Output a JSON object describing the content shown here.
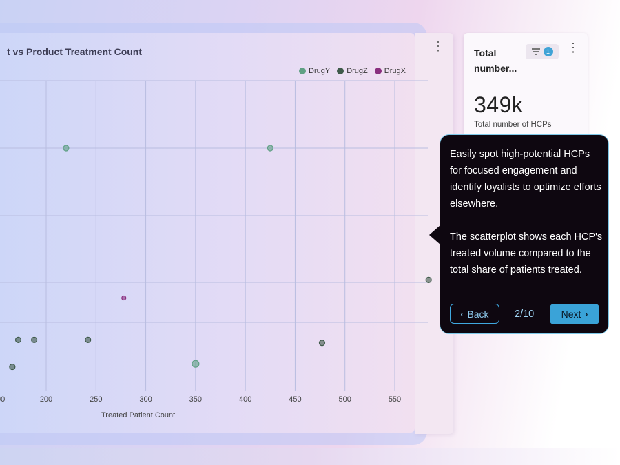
{
  "chart": {
    "title": "t vs Product Treatment Count",
    "menu_icon": "vertical-dots-icon"
  },
  "chart_data": {
    "type": "scatter",
    "title": "t vs Product Treatment Count",
    "xlabel": "Treated Patient Count",
    "ylabel": "",
    "x_ticks": [
      "00",
      "200",
      "250",
      "300",
      "350",
      "400",
      "450",
      "500",
      "550"
    ],
    "xlim": [
      100,
      590
    ],
    "grid": true,
    "legend_placement": "top-right",
    "series": [
      {
        "name": "DrugY",
        "color": "#5fa084",
        "points": [
          {
            "x": 220,
            "y": 5,
            "size": 4
          },
          {
            "x": 425,
            "y": 5,
            "size": 4
          },
          {
            "x": 350,
            "y": 1.4,
            "size": 5
          }
        ]
      },
      {
        "name": "DrugZ",
        "color": "#3f5a4a",
        "points": [
          {
            "x": 172,
            "y": 1.8,
            "size": 4
          },
          {
            "x": 188,
            "y": 1.8,
            "size": 4
          },
          {
            "x": 242,
            "y": 1.8,
            "size": 4
          },
          {
            "x": 166,
            "y": 1.35,
            "size": 4
          },
          {
            "x": 477,
            "y": 1.75,
            "size": 4
          },
          {
            "x": 584,
            "y": 2.8,
            "size": 4
          }
        ]
      },
      {
        "name": "DrugX",
        "color": "#8a2f7f",
        "points": [
          {
            "x": 278,
            "y": 2.5,
            "size": 3
          }
        ]
      }
    ]
  },
  "kpi": {
    "title": "Total number...",
    "filter_count": "1",
    "filter_icon": "filter-icon",
    "menu_icon": "vertical-dots-icon",
    "value": "349k",
    "subtitle": "Total number of HCPs"
  },
  "tour": {
    "paragraph1": "Easily spot high-potential HCPs for focused engagement and identify loyalists to optimize efforts elsewhere.",
    "paragraph2": "The scatterplot shows each HCP's treated volume compared to the total share of patients treated.",
    "back_label": "Back",
    "step": "2/10",
    "next_label": "Next"
  }
}
